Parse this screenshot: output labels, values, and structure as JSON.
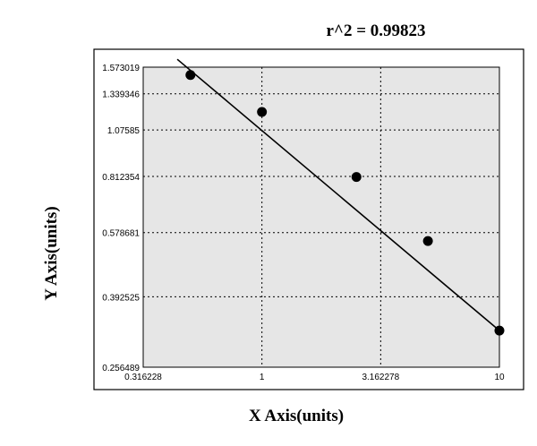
{
  "chart_data": {
    "type": "scatter",
    "title": "r^2  =  0.99823",
    "xlabel": "X Axis(units)",
    "ylabel": "Y Axis(units)",
    "x_scale": "log",
    "y_scale": "log",
    "xlim": [
      0.316228,
      10
    ],
    "ylim": [
      0.256489,
      1.573019
    ],
    "x_ticks": [
      {
        "value": 0.316228,
        "label": "0.316228"
      },
      {
        "value": 1,
        "label": "1"
      },
      {
        "value": 3.162278,
        "label": "3.162278"
      },
      {
        "value": 10,
        "label": "10"
      }
    ],
    "y_ticks": [
      {
        "value": 1.573019,
        "label": "1.573019"
      },
      {
        "value": 1.339346,
        "label": "1.339346"
      },
      {
        "value": 1.07585,
        "label": "1.07585"
      },
      {
        "value": 0.812354,
        "label": "0.812354"
      },
      {
        "value": 0.578681,
        "label": "0.578681"
      },
      {
        "value": 0.392525,
        "label": "0.392525"
      },
      {
        "value": 0.256489,
        "label": "0.256489"
      }
    ],
    "points": [
      {
        "x": 0.5,
        "y": 1.5
      },
      {
        "x": 1.0,
        "y": 1.2
      },
      {
        "x": 2.5,
        "y": 0.81
      },
      {
        "x": 5.0,
        "y": 0.55
      },
      {
        "x": 10.0,
        "y": 0.32
      }
    ],
    "fit_line": [
      {
        "x": 0.44,
        "y": 1.65
      },
      {
        "x": 10.0,
        "y": 0.32
      }
    ],
    "grid": true,
    "grid_style": "dotted",
    "colors": {
      "plot_background": "#e6e6e6",
      "frame_background": "#ffffff",
      "points": "#000000",
      "line": "#000000",
      "grid": "#000000"
    }
  }
}
